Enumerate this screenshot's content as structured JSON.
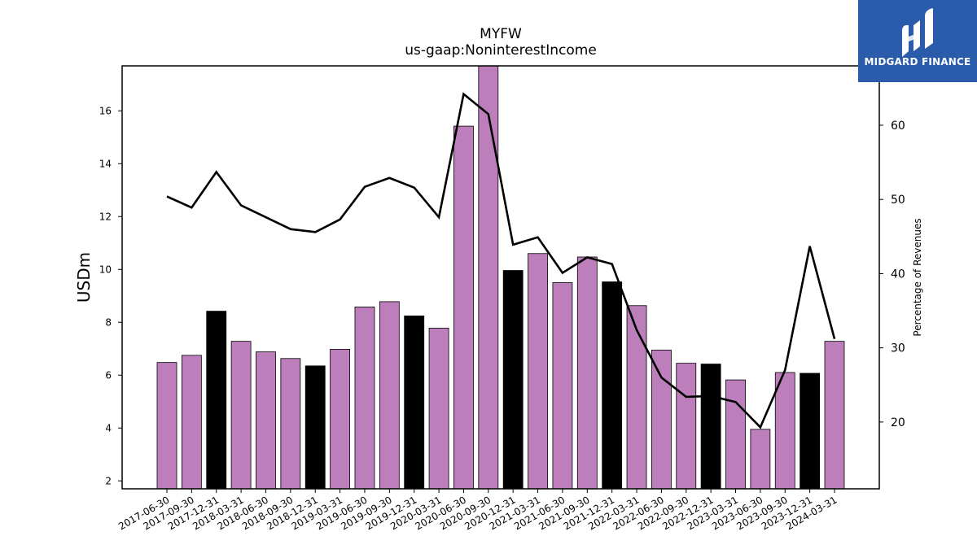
{
  "header": {
    "title": "MYFW",
    "subtitle": "us-gaap:NoninterestIncome"
  },
  "logo": {
    "text": "MIDGARD FINANCE"
  },
  "colors": {
    "bar_default": "#bc7fbc",
    "bar_highlight": "#000000",
    "line": "#000000",
    "logo_bg": "#2b5cab"
  },
  "chart_data": {
    "type": "bar",
    "title": "MYFW",
    "subtitle": "us-gaap:NoninterestIncome",
    "ylabel": "USDm",
    "y2label": "Percentage of Revenues",
    "categories": [
      "2017-06-30",
      "2017-09-30",
      "2017-12-31",
      "2018-03-31",
      "2018-06-30",
      "2018-09-30",
      "2018-12-31",
      "2019-03-31",
      "2019-06-30",
      "2019-09-30",
      "2019-12-31",
      "2020-03-31",
      "2020-06-30",
      "2020-09-30",
      "2020-12-31",
      "2021-03-31",
      "2021-06-30",
      "2021-09-30",
      "2021-12-31",
      "2022-03-31",
      "2022-06-30",
      "2022-09-30",
      "2022-12-31",
      "2023-03-31",
      "2023-06-30",
      "2023-09-30",
      "2023-12-31",
      "2024-03-31"
    ],
    "series": [
      {
        "values": [
          6.48,
          6.75,
          8.42,
          7.28,
          6.88,
          6.63,
          6.35,
          6.98,
          8.58,
          8.78,
          8.24,
          7.78,
          15.42,
          17.85,
          9.96,
          10.6,
          9.5,
          10.47,
          9.53,
          8.63,
          6.95,
          6.45,
          6.42,
          5.82,
          3.95,
          6.1,
          6.07,
          7.28
        ]
      },
      {
        "axis": "right",
        "values": [
          50.4,
          48.9,
          53.7,
          49.2,
          47.6,
          46.0,
          45.6,
          47.3,
          51.7,
          52.9,
          51.6,
          47.6,
          64.2,
          61.5,
          43.9,
          44.9,
          40.1,
          42.2,
          41.3,
          32.4,
          26.0,
          23.4,
          23.5,
          22.7,
          19.3,
          27.0,
          43.7,
          31.2
        ]
      }
    ],
    "highlight_indices": [
      2,
      6,
      10,
      14,
      18,
      22,
      26
    ],
    "ytick_labels": [
      "2",
      "4",
      "6",
      "8",
      "10",
      "12",
      "14",
      "16"
    ],
    "y2tick_labels": [
      "20",
      "30",
      "40",
      "50",
      "60"
    ],
    "ylim": [
      1.7,
      17.7
    ],
    "y2lim": [
      11,
      68
    ],
    "grid": false,
    "legend": "none"
  }
}
